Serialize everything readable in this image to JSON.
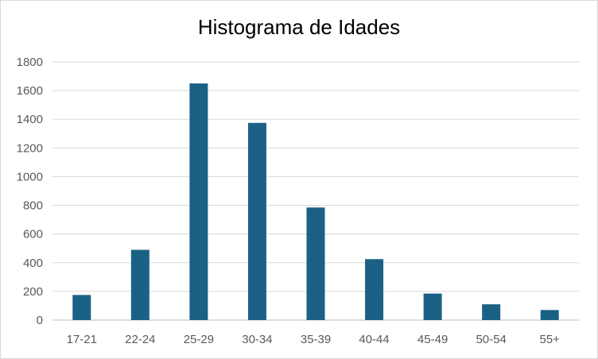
{
  "chart_data": {
    "type": "bar",
    "title": "Histograma de Idades",
    "categories": [
      "17-21",
      "22-24",
      "25-29",
      "30-34",
      "35-39",
      "40-44",
      "45-49",
      "50-54",
      "55+"
    ],
    "values": [
      175,
      490,
      1650,
      1375,
      785,
      425,
      185,
      110,
      70
    ],
    "ylim": [
      0,
      1800
    ],
    "yticks": [
      0,
      200,
      400,
      600,
      800,
      1000,
      1200,
      1400,
      1600,
      1800
    ],
    "grid": true,
    "bar_color": "#1a6185",
    "grid_color": "#d9d9d9",
    "axis_color": "#bfbfbf"
  }
}
